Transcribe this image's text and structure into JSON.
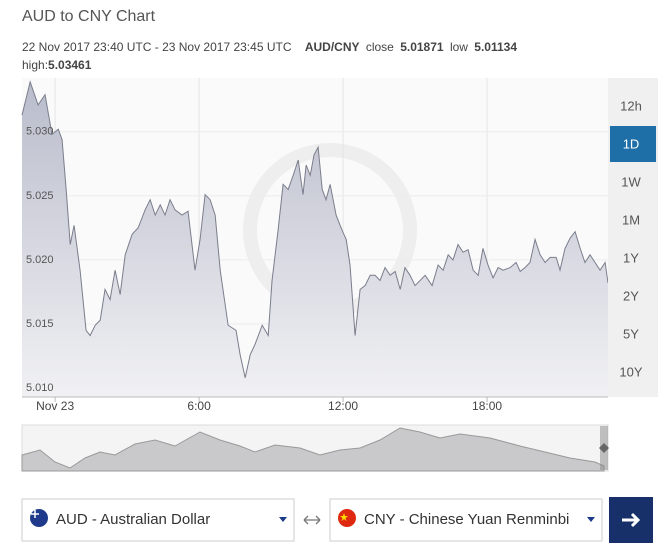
{
  "header": {
    "title": "AUD to CNY Chart",
    "range": "22 Nov 2017 23:40 UTC - 23 Nov 2017 23:45 UTC",
    "pair": "AUD/CNY",
    "close_label": "close",
    "close": "5.01871",
    "low_label": "low",
    "low": "5.01134",
    "high_label": "high:",
    "high": "5.03461"
  },
  "chart_data": {
    "type": "area",
    "color": "#7a7d8c",
    "x": [
      -1.38,
      -1.04,
      -0.71,
      -0.42,
      -0.13,
      0.13,
      0.29,
      0.46,
      0.63,
      0.79,
      1.04,
      1.29,
      1.46,
      1.67,
      1.88,
      2.08,
      2.29,
      2.5,
      2.71,
      2.92,
      3.21,
      3.46,
      3.75,
      3.96,
      4.17,
      4.38,
      4.58,
      4.79,
      5,
      5.29,
      5.54,
      5.83,
      6.04,
      6.25,
      6.46,
      6.67,
      6.88,
      7.21,
      7.54,
      7.71,
      7.92,
      8.13,
      8.33,
      8.63,
      8.88,
      9.04,
      9.29,
      9.5,
      9.71,
      9.92,
      10.13,
      10.33,
      10.46,
      10.63,
      10.79,
      10.96,
      11.13,
      11.29,
      11.46,
      11.71,
      11.96,
      12.13,
      12.29,
      12.5,
      12.71,
      12.92,
      13.13,
      13.33,
      13.54,
      13.75,
      13.96,
      14.17,
      14.38,
      14.58,
      14.79,
      15,
      15.21,
      15.42,
      15.71,
      15.96,
      16.17,
      16.38,
      16.58,
      16.79,
      17,
      17.21,
      17.42,
      17.63,
      17.83,
      18.04,
      18.25,
      18.46,
      18.67,
      18.96,
      19.21,
      19.38,
      19.58,
      19.79,
      20,
      20.21,
      20.42,
      20.63,
      20.88,
      21.04,
      21.25,
      21.46,
      21.67,
      21.88,
      22.08,
      22.29,
      22.5,
      22.71,
      22.92,
      23.04
    ],
    "values": [
      5.0313,
      5.0339,
      5.0321,
      5.0329,
      5.0298,
      5.0302,
      5.0294,
      5.0255,
      5.0212,
      5.0227,
      5.0192,
      5.0145,
      5.0141,
      5.0149,
      5.0153,
      5.0177,
      5.0169,
      5.0192,
      5.0173,
      5.0204,
      5.022,
      5.0225,
      5.0239,
      5.0247,
      5.0235,
      5.0243,
      5.0235,
      5.0247,
      5.0239,
      5.0235,
      5.0238,
      5.0192,
      5.0216,
      5.0251,
      5.0247,
      5.0235,
      5.0192,
      5.0149,
      5.0145,
      5.0126,
      5.0108,
      5.0126,
      5.0134,
      5.0149,
      5.0141,
      5.0184,
      5.0223,
      5.0259,
      5.0255,
      5.0266,
      5.0278,
      5.0251,
      5.0274,
      5.0266,
      5.0282,
      5.0288,
      5.0255,
      5.0247,
      5.0259,
      5.0235,
      5.0223,
      5.0216,
      5.0196,
      5.0141,
      5.0177,
      5.018,
      5.0188,
      5.0188,
      5.0184,
      5.0194,
      5.0188,
      5.0191,
      5.0177,
      5.0194,
      5.0188,
      5.018,
      5.0184,
      5.0188,
      5.018,
      5.0196,
      5.0192,
      5.0204,
      5.02,
      5.0212,
      5.0206,
      5.0208,
      5.0192,
      5.0188,
      5.0209,
      5.0196,
      5.0186,
      5.0194,
      5.0192,
      5.0194,
      5.0198,
      5.0191,
      5.0194,
      5.0198,
      5.0216,
      5.0204,
      5.0198,
      5.0202,
      5.0202,
      5.0192,
      5.0209,
      5.0217,
      5.0222,
      5.0209,
      5.0198,
      5.0204,
      5.0198,
      5.0192,
      5.0198,
      5.0182
    ],
    "xlim": [
      -1.38,
      23.04
    ],
    "ylim": [
      5.0093,
      5.0342
    ],
    "xticks": [
      {
        "value": 0,
        "label": "Nov 23"
      },
      {
        "value": 6,
        "label": "6:00"
      },
      {
        "value": 12,
        "label": "12:00"
      },
      {
        "value": 18,
        "label": "18:00"
      }
    ],
    "yticks": [
      {
        "value": 5.01,
        "label": "5.010"
      },
      5.015,
      {
        "value": 5.02,
        "label": "5.020"
      },
      5.025,
      {
        "value": 5.03,
        "label": "5.030"
      }
    ],
    "grid": true
  },
  "range_buttons": {
    "items": [
      "12h",
      "1D",
      "1W",
      "1M",
      "1Y",
      "2Y",
      "5Y",
      "10Y"
    ],
    "active": 1
  },
  "converter": {
    "from": "AUD - Australian Dollar",
    "to": "CNY - Chinese Yuan Renminbi"
  }
}
